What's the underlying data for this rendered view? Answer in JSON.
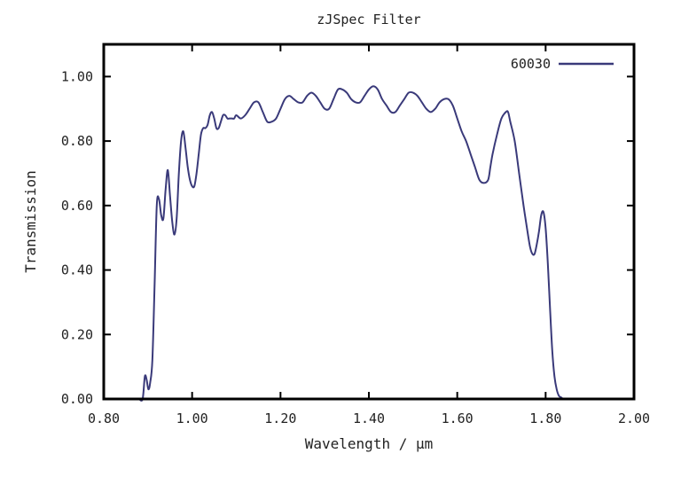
{
  "chart_data": {
    "type": "line",
    "title": "zJSpec Filter",
    "xlabel": "Wavelength / μm",
    "ylabel": "Transmission",
    "xlim": [
      0.8,
      2.0
    ],
    "ylim": [
      0.0,
      1.1
    ],
    "x_ticks": [
      "0.80",
      "1.00",
      "1.20",
      "1.40",
      "1.60",
      "1.80",
      "2.00"
    ],
    "y_ticks": [
      "0.00",
      "0.20",
      "0.40",
      "0.60",
      "0.80",
      "1.00"
    ],
    "legend_position": "top-right",
    "line_color": "#3a3a7a",
    "series": [
      {
        "name": "60030",
        "x": [
          0.88,
          0.888,
          0.893,
          0.897,
          0.901,
          0.905,
          0.91,
          0.915,
          0.92,
          0.925,
          0.93,
          0.935,
          0.94,
          0.945,
          0.95,
          0.955,
          0.96,
          0.965,
          0.97,
          0.975,
          0.98,
          0.985,
          0.99,
          0.995,
          1.0,
          1.005,
          1.01,
          1.015,
          1.02,
          1.025,
          1.03,
          1.035,
          1.04,
          1.045,
          1.05,
          1.055,
          1.06,
          1.065,
          1.07,
          1.075,
          1.08,
          1.085,
          1.09,
          1.095,
          1.1,
          1.11,
          1.12,
          1.13,
          1.14,
          1.15,
          1.16,
          1.17,
          1.18,
          1.19,
          1.2,
          1.21,
          1.22,
          1.23,
          1.24,
          1.25,
          1.26,
          1.27,
          1.28,
          1.29,
          1.3,
          1.31,
          1.32,
          1.33,
          1.34,
          1.35,
          1.36,
          1.37,
          1.38,
          1.39,
          1.4,
          1.41,
          1.42,
          1.43,
          1.44,
          1.45,
          1.46,
          1.47,
          1.48,
          1.49,
          1.5,
          1.51,
          1.52,
          1.53,
          1.54,
          1.55,
          1.56,
          1.57,
          1.58,
          1.59,
          1.6,
          1.61,
          1.62,
          1.63,
          1.64,
          1.65,
          1.66,
          1.67,
          1.675,
          1.68,
          1.69,
          1.7,
          1.71,
          1.715,
          1.72,
          1.73,
          1.74,
          1.75,
          1.76,
          1.765,
          1.77,
          1.775,
          1.78,
          1.785,
          1.79,
          1.795,
          1.8,
          1.805,
          1.81,
          1.815,
          1.82,
          1.825,
          1.83,
          1.835,
          1.84,
          1.845,
          1.85,
          1.855,
          1.86,
          1.865,
          1.87,
          1.875,
          1.88,
          1.885,
          1.89,
          1.895
        ],
        "values": [
          0.0,
          0.0,
          0.07,
          0.06,
          0.03,
          0.05,
          0.12,
          0.35,
          0.6,
          0.62,
          0.57,
          0.56,
          0.65,
          0.71,
          0.63,
          0.55,
          0.51,
          0.56,
          0.7,
          0.8,
          0.83,
          0.78,
          0.72,
          0.68,
          0.66,
          0.66,
          0.7,
          0.76,
          0.82,
          0.84,
          0.84,
          0.85,
          0.88,
          0.89,
          0.87,
          0.84,
          0.84,
          0.86,
          0.88,
          0.88,
          0.87,
          0.87,
          0.87,
          0.87,
          0.88,
          0.87,
          0.88,
          0.9,
          0.92,
          0.92,
          0.89,
          0.86,
          0.86,
          0.87,
          0.9,
          0.93,
          0.94,
          0.93,
          0.92,
          0.92,
          0.94,
          0.95,
          0.94,
          0.92,
          0.9,
          0.9,
          0.93,
          0.96,
          0.96,
          0.95,
          0.93,
          0.92,
          0.92,
          0.94,
          0.96,
          0.97,
          0.96,
          0.93,
          0.91,
          0.89,
          0.89,
          0.91,
          0.93,
          0.95,
          0.95,
          0.94,
          0.92,
          0.9,
          0.89,
          0.9,
          0.92,
          0.93,
          0.93,
          0.91,
          0.87,
          0.83,
          0.8,
          0.76,
          0.72,
          0.68,
          0.67,
          0.68,
          0.72,
          0.76,
          0.82,
          0.87,
          0.89,
          0.89,
          0.86,
          0.8,
          0.7,
          0.6,
          0.51,
          0.47,
          0.45,
          0.45,
          0.48,
          0.52,
          0.57,
          0.58,
          0.53,
          0.42,
          0.28,
          0.15,
          0.07,
          0.03,
          0.01,
          0.005,
          0.0,
          0.0,
          0.0,
          0.0,
          0.0,
          0.0,
          0.0,
          0.0,
          0.0,
          0.0,
          0.0,
          0.0
        ]
      }
    ]
  }
}
